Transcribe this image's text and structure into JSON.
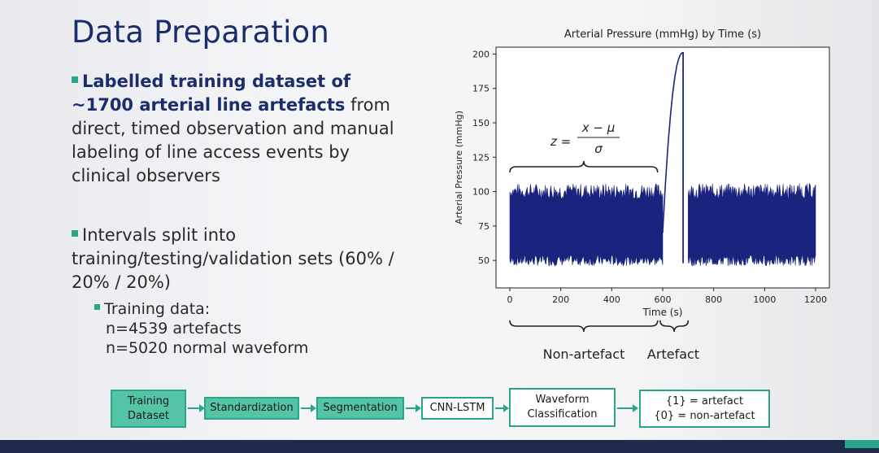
{
  "slide": {
    "title": "Data Preparation",
    "bullet1": {
      "bold": "Labelled training dataset of ~1700 arterial line artefacts",
      "rest": " from direct, timed observation and manual labeling of line access events by clinical observers"
    },
    "bullet2": {
      "text": "Intervals split into training/testing/validation sets (60% / 20% / 20%)"
    },
    "bullet3": {
      "line1": "Training data:",
      "line2": "n=4539 artefacts",
      "line3": "n=5020 normal waveform"
    }
  },
  "chart_data": {
    "type": "line",
    "title": "Arterial Pressure (mmHg) by Time (s)",
    "xlabel": "Time (s)",
    "ylabel": "Arterial Pressure (mmHg)",
    "xlim": [
      0,
      1200
    ],
    "ylim": [
      30,
      205
    ],
    "x_ticks": [
      0,
      200,
      400,
      600,
      800,
      1000,
      1200
    ],
    "y_ticks": [
      50,
      75,
      100,
      125,
      150,
      175,
      200
    ],
    "series": [
      {
        "name": "arterial pressure",
        "color": "#1a237e",
        "segments": [
          {
            "x_start": 0,
            "x_end": 600,
            "low": 50,
            "high": 100,
            "label": "normal"
          },
          {
            "x_start": 600,
            "x_end": 680,
            "shape": "rise",
            "from": 70,
            "to": 201,
            "label": "artefact"
          },
          {
            "x_start": 700,
            "x_end": 1200,
            "low": 50,
            "high": 100,
            "label": "normal"
          }
        ]
      }
    ],
    "annotations": {
      "formula_lhs": "z =",
      "formula_num": "x − μ",
      "formula_den": "σ",
      "label_normal": "Non-artefact",
      "label_artefact": "Artefact"
    }
  },
  "pipeline": {
    "steps": [
      "Training Dataset",
      "Standardization",
      "Segmentation",
      "CNN-LSTM",
      "Waveform Classification"
    ],
    "output_line1": "{1} = artefact",
    "output_line2": "{0} = non-artefact"
  }
}
